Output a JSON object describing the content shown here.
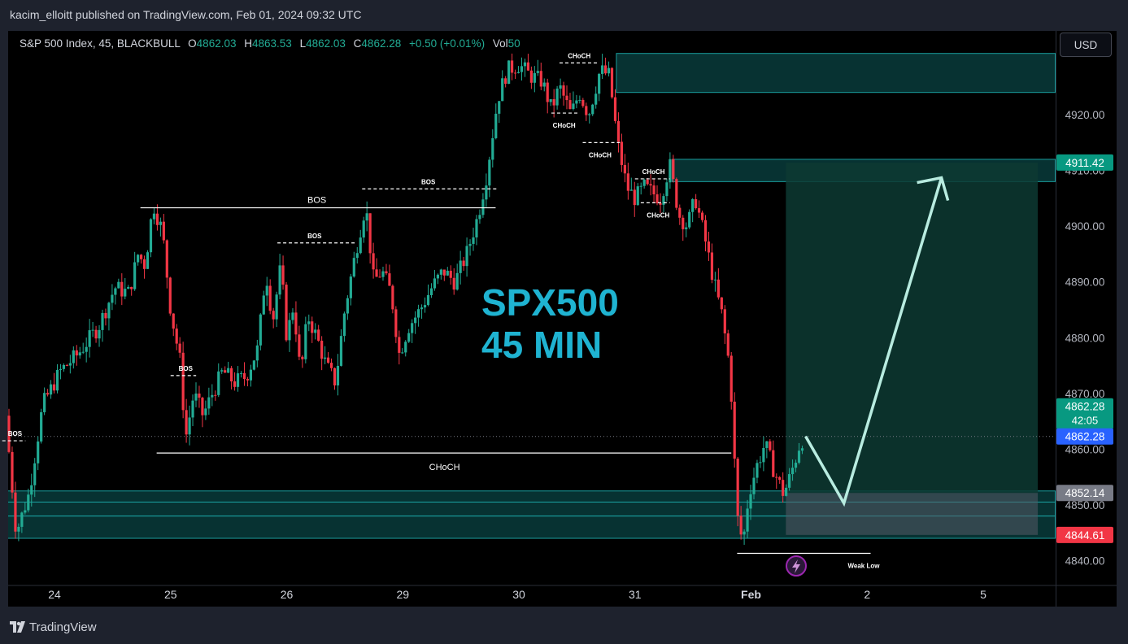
{
  "publisher_line": "kacim_elloitt published on TradingView.com, Feb 01, 2024 09:32 UTC",
  "legend": {
    "symbol": "S&P 500 Index, 45, BLACKBULL",
    "o_label": "O",
    "o_value": "4862.03",
    "h_label": "H",
    "h_value": "4863.53",
    "l_label": "L",
    "l_value": "4862.03",
    "c_label": "C",
    "c_value": "4862.28",
    "change": "+0.50 (+0.01%)",
    "vol_label": "Vol",
    "vol_value": "50"
  },
  "currency_button": "USD",
  "footer_brand": "TradingView",
  "colors": {
    "up": "#22ab94",
    "down": "#f23645",
    "zone": "#0f6e6e",
    "target": "#0d3a32",
    "price_tag": "#089981",
    "current_tag": "#2962ff",
    "red_tag": "#f23645",
    "gray_tag": "#787b86",
    "title": "#1fb3d1"
  },
  "chart_data": {
    "type": "candlestick",
    "title_line1": "SPX500",
    "title_line2": "45 MIN",
    "ylim": [
      4837,
      4933
    ],
    "y_ticks": [
      4840,
      4850,
      4860,
      4870,
      4880,
      4890,
      4900,
      4910,
      4920
    ],
    "y_tick_labels": [
      "4840.00",
      "4850.00",
      "4860.00",
      "4870.00",
      "4880.00",
      "4890.00",
      "4900.00",
      "4910.00",
      "4920.00"
    ],
    "x_tick_labels": [
      {
        "label": "24",
        "day": 0
      },
      {
        "label": "25",
        "day": 1
      },
      {
        "label": "26",
        "day": 2
      },
      {
        "label": "29",
        "day": 3
      },
      {
        "label": "30",
        "day": 4
      },
      {
        "label": "31",
        "day": 5
      },
      {
        "label": "Feb",
        "day": 6,
        "bold": true
      },
      {
        "label": "2",
        "day": 7
      },
      {
        "label": "5",
        "day": 8
      }
    ],
    "price_tags": [
      {
        "value": 4911.42,
        "label": "4911.42",
        "kind": "price_tag"
      },
      {
        "value": 4862.28,
        "label": "4862.28",
        "sub": "42:05",
        "kind": "last",
        "offset": -5.5
      },
      {
        "value": 4862.28,
        "label": "4862.28",
        "kind": "current_tag",
        "offset": 0
      },
      {
        "value": 4852.14,
        "label": "4852.14",
        "kind": "gray_tag"
      },
      {
        "value": 4844.61,
        "label": "4844.61",
        "kind": "red_tag"
      }
    ],
    "path_points": [
      [
        -0.42,
        4866
      ],
      [
        -0.33,
        4845
      ],
      [
        -0.22,
        4852
      ],
      [
        -0.1,
        4868
      ],
      [
        0.05,
        4874
      ],
      [
        0.2,
        4877
      ],
      [
        0.38,
        4882
      ],
      [
        0.52,
        4889
      ],
      [
        0.64,
        4888
      ],
      [
        0.72,
        4895
      ],
      [
        0.78,
        4893
      ],
      [
        0.85,
        4904
      ],
      [
        0.93,
        4899
      ],
      [
        1.0,
        4885
      ],
      [
        1.08,
        4876
      ],
      [
        1.13,
        4862
      ],
      [
        1.2,
        4870
      ],
      [
        1.28,
        4866
      ],
      [
        1.36,
        4870
      ],
      [
        1.45,
        4874
      ],
      [
        1.55,
        4872
      ],
      [
        1.65,
        4873
      ],
      [
        1.75,
        4878
      ],
      [
        1.82,
        4892
      ],
      [
        1.88,
        4883
      ],
      [
        1.95,
        4893
      ],
      [
        2.0,
        4880
      ],
      [
        2.06,
        4886
      ],
      [
        2.12,
        4873
      ],
      [
        2.18,
        4884
      ],
      [
        2.26,
        4880
      ],
      [
        2.34,
        4875
      ],
      [
        2.42,
        4872
      ],
      [
        2.5,
        4885
      ],
      [
        2.6,
        4896
      ],
      [
        2.68,
        4904
      ],
      [
        2.75,
        4890
      ],
      [
        2.82,
        4892
      ],
      [
        2.9,
        4888
      ],
      [
        2.97,
        4877
      ],
      [
        3.05,
        4882
      ],
      [
        3.15,
        4885
      ],
      [
        3.25,
        4889
      ],
      [
        3.35,
        4892
      ],
      [
        3.45,
        4890
      ],
      [
        3.55,
        4895
      ],
      [
        3.65,
        4902
      ],
      [
        3.72,
        4909
      ],
      [
        3.82,
        4923
      ],
      [
        3.9,
        4928
      ],
      [
        4.0,
        4929
      ],
      [
        4.1,
        4927
      ],
      [
        4.2,
        4926
      ],
      [
        4.28,
        4921
      ],
      [
        4.35,
        4925
      ],
      [
        4.45,
        4920
      ],
      [
        4.52,
        4924
      ],
      [
        4.6,
        4920
      ],
      [
        4.7,
        4928
      ],
      [
        4.78,
        4927
      ],
      [
        4.85,
        4915
      ],
      [
        4.93,
        4907
      ],
      [
        5.0,
        4905
      ],
      [
        5.08,
        4907
      ],
      [
        5.15,
        4906
      ],
      [
        5.22,
        4905
      ],
      [
        5.3,
        4911
      ],
      [
        5.38,
        4902
      ],
      [
        5.45,
        4900
      ],
      [
        5.52,
        4905
      ],
      [
        5.6,
        4898
      ],
      [
        5.68,
        4890
      ],
      [
        5.75,
        4884
      ],
      [
        5.82,
        4874
      ],
      [
        5.88,
        4848
      ],
      [
        5.93,
        4843
      ],
      [
        5.98,
        4852
      ],
      [
        6.05,
        4857
      ],
      [
        6.12,
        4861
      ],
      [
        6.2,
        4856
      ],
      [
        6.28,
        4852
      ],
      [
        6.32,
        4854
      ],
      [
        6.38,
        4858
      ],
      [
        6.42,
        4861
      ],
      [
        6.46,
        4862.28
      ]
    ],
    "lines": [
      {
        "type": "solid",
        "x1": 0.74,
        "x2": 3.8,
        "y": 4903.3,
        "label": "BOS",
        "label_day": 2.26,
        "label_size": "big"
      },
      {
        "type": "dashed",
        "x1": 2.65,
        "x2": 3.82,
        "y": 4906.7,
        "label": "BOS",
        "label_day": 3.22,
        "label_size": "small"
      },
      {
        "type": "dashed",
        "x1": 1.92,
        "x2": 2.6,
        "y": 4897.0,
        "label": "BOS",
        "label_day": 2.24,
        "label_size": "small"
      },
      {
        "type": "dashed",
        "x1": 1.0,
        "x2": 1.22,
        "y": 4873.2,
        "label": "BOS",
        "label_day": 1.13,
        "label_size": "small"
      },
      {
        "type": "dashed",
        "x1": -0.45,
        "x2": -0.25,
        "y": 4861.5,
        "label": "BOS",
        "label_day": -0.34,
        "label_size": "small"
      },
      {
        "type": "solid",
        "x1": 0.88,
        "x2": 5.83,
        "y": 4859.3,
        "label": "CHoCH",
        "label_day": 3.36,
        "label_size": "big",
        "below": true
      },
      {
        "type": "dashed",
        "x1": 4.35,
        "x2": 4.68,
        "y": 4929.3,
        "label": "CHoCH",
        "label_day": 4.52,
        "label_size": "small"
      },
      {
        "type": "dashed",
        "x1": 4.28,
        "x2": 4.52,
        "y": 4920.3,
        "label": "CHoCH",
        "label_day": 4.39,
        "label_size": "small",
        "below": true
      },
      {
        "type": "dashed",
        "x1": 4.55,
        "x2": 4.87,
        "y": 4915.0,
        "label": "CHoCH",
        "label_day": 4.7,
        "label_size": "small",
        "below": true
      },
      {
        "type": "dashed",
        "x1": 5.0,
        "x2": 5.3,
        "y": 4908.5,
        "label": "CHoCH",
        "label_day": 5.16,
        "label_size": "small"
      },
      {
        "type": "dashed",
        "x1": 5.05,
        "x2": 5.3,
        "y": 4904.2,
        "label": "CHoCH",
        "label_day": 5.2,
        "label_size": "small",
        "below": true
      },
      {
        "type": "solid",
        "x1": 5.88,
        "x2": 7.03,
        "y": 4841.3,
        "label": "Weak Low",
        "label_day": 6.97,
        "label_size": "small",
        "below": true
      }
    ],
    "zones": [
      {
        "x1": 4.84,
        "x2": 8.62,
        "y_top": 4931,
        "y_bot": 4924
      },
      {
        "x1": 5.32,
        "x2": 8.62,
        "y_top": 4912,
        "y_bot": 4908
      },
      {
        "x1": -0.42,
        "x2": 8.62,
        "y_top": 4852.5,
        "y_bot": 4850.5
      },
      {
        "x1": -0.42,
        "x2": 8.62,
        "y_top": 4850.5,
        "y_bot": 4848
      },
      {
        "x1": -0.42,
        "x2": 8.62,
        "y_top": 4848,
        "y_bot": 4844
      }
    ],
    "target_box": {
      "x1": 6.3,
      "x2": 8.47,
      "entry": 4852.14,
      "target": 4911.42,
      "stop": 4844.61
    },
    "projection": [
      [
        6.47,
        4862.3
      ],
      [
        6.8,
        4850.3
      ],
      [
        7.64,
        4908.7
      ]
    ],
    "grid": false
  }
}
